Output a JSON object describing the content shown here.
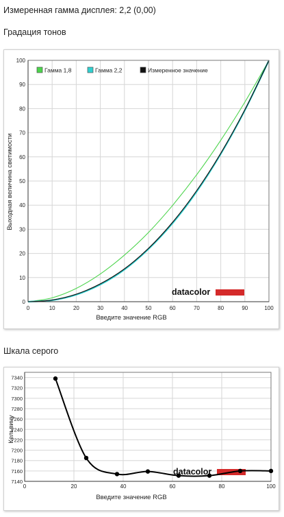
{
  "page": {
    "summary": "Измеренная гамма дисплея: 2,2 (0,00)",
    "section1_title": "Градация тонов",
    "section2_title": "Шкала серого"
  },
  "brand": {
    "logo_text": "datacolor",
    "logo_bar_color": "#d42a2a"
  },
  "chart_data": [
    {
      "type": "line",
      "xlabel": "Введите значение RGB",
      "ylabel": "Выходная величина светимости",
      "xlim": [
        0,
        100
      ],
      "ylim": [
        0,
        100
      ],
      "xticks": [
        0,
        10,
        20,
        30,
        40,
        50,
        60,
        70,
        80,
        90,
        100
      ],
      "yticks": [
        0,
        10,
        20,
        30,
        40,
        50,
        60,
        70,
        80,
        90,
        100
      ],
      "grid": true,
      "legend_position": "top-left",
      "series": [
        {
          "name": "Гамма 1,8",
          "color": "#4cd44c",
          "x": [
            0,
            10,
            20,
            30,
            40,
            50,
            60,
            70,
            80,
            90,
            100
          ],
          "values": [
            0,
            1.6,
            5.5,
            11.5,
            19.3,
            28.7,
            39.9,
            52.6,
            66.9,
            82.7,
            100
          ]
        },
        {
          "name": "Гамма 2,2",
          "color": "#30d0d0",
          "x": [
            0,
            10,
            20,
            30,
            40,
            50,
            60,
            70,
            80,
            90,
            100
          ],
          "values": [
            0,
            0.6,
            2.9,
            7.1,
            13.3,
            21.8,
            32.5,
            45.6,
            61.2,
            79.3,
            100
          ]
        },
        {
          "name": "Измеренное значение",
          "color": "#111111",
          "x": [
            0,
            10,
            20,
            30,
            40,
            50,
            60,
            70,
            80,
            90,
            100
          ],
          "values": [
            0,
            0.7,
            3.1,
            7.4,
            13.6,
            22.1,
            32.9,
            46.0,
            61.5,
            79.5,
            100
          ]
        }
      ]
    },
    {
      "type": "line",
      "xlabel": "Введите значение RGB",
      "ylabel": "Кельвину",
      "xlim": [
        0,
        100
      ],
      "ylim": [
        7140,
        7350
      ],
      "xticks": [
        0,
        20,
        40,
        60,
        80,
        100
      ],
      "yticks": [
        7140,
        7160,
        7180,
        7200,
        7220,
        7240,
        7260,
        7280,
        7300,
        7320,
        7340
      ],
      "grid": true,
      "series": [
        {
          "color": "#000000",
          "x": [
            12.5,
            25,
            37.5,
            50,
            62.5,
            75,
            87.5,
            100
          ],
          "values": [
            7338,
            7185,
            7154,
            7159,
            7151,
            7151,
            7160,
            7160
          ]
        }
      ]
    }
  ]
}
